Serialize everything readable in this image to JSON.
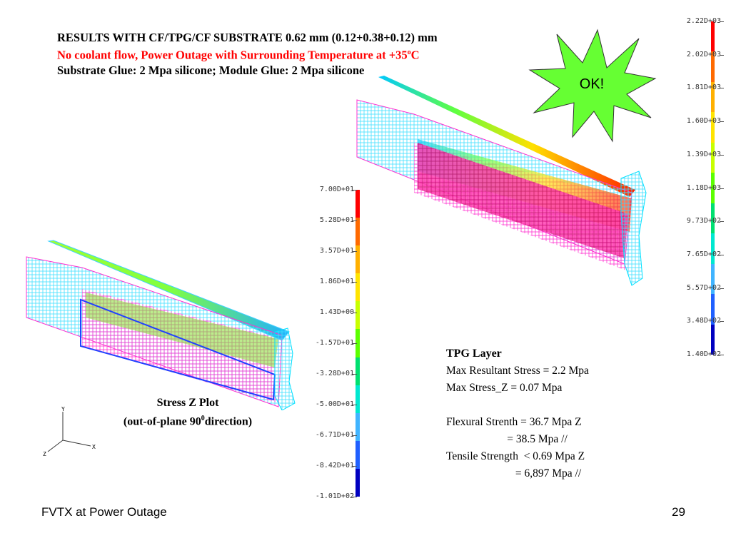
{
  "title": {
    "line1": "RESULTS WITH CF/TPG/CF SUBSTRATE 0.62 mm (0.12+0.38+0.12) mm",
    "line2_main": "No coolant flow, Power Outage with Surrounding Temperature at +35",
    "line2_sup": "o",
    "line2_unit": "C",
    "line3": "Substrate Glue: 2 Mpa silicone;  Module Glue: 2 Mpa silicone"
  },
  "starburst_text": "OK!",
  "right_scale": {
    "labels": [
      "2.22D+03",
      "2.02D+03",
      "1.81D+03",
      "1.60D+03",
      "1.39D+03",
      "1.18D+03",
      "9.73D+02",
      "7.65D+02",
      "5.57D+02",
      "3.48D+02",
      "1.40D+02"
    ],
    "colors": [
      "#ff0000",
      "#ff6a00",
      "#ffb000",
      "#ffe400",
      "#c8ff00",
      "#5cff00",
      "#00e070",
      "#00e8d0",
      "#40b4ff",
      "#2060ff",
      "#0000c0"
    ]
  },
  "left_scale": {
    "labels": [
      "7.00D+01",
      "5.28D+01",
      "3.57D+01",
      "1.86D+01",
      "1.43D+00",
      "-1.57D+01",
      "-3.28D+01",
      "-5.00D+01",
      "-6.71D+01",
      "-8.42D+01",
      "-1.01D+02"
    ],
    "colors": [
      "#ff0000",
      "#ff6a00",
      "#ffb000",
      "#ffe400",
      "#c8ff00",
      "#5cff00",
      "#00e070",
      "#00e8d0",
      "#40b4ff",
      "#2060ff",
      "#0000c0"
    ]
  },
  "stress_caption": {
    "line1": "Stress Z Plot",
    "line2_pre": "(out-of-plane 90",
    "line2_sup": "0",
    "line2_post": "direction)"
  },
  "axes": {
    "y": "Y",
    "z": "Z",
    "x": "X"
  },
  "tpg_info": {
    "heading": "TPG Layer",
    "lines": [
      "Max Resultant Stress = 2.2 Mpa",
      "Max Stress_Z = 0.07 Mpa",
      "",
      "Flexural Strenth = 36.7 Mpa Z",
      "                      = 38.5 Mpa //",
      "Tensile Strength  < 0.69 Mpa Z",
      "                         = 6,897 Mpa //"
    ]
  },
  "footer": {
    "left": "FVTX at Power Outage",
    "page": "29"
  }
}
